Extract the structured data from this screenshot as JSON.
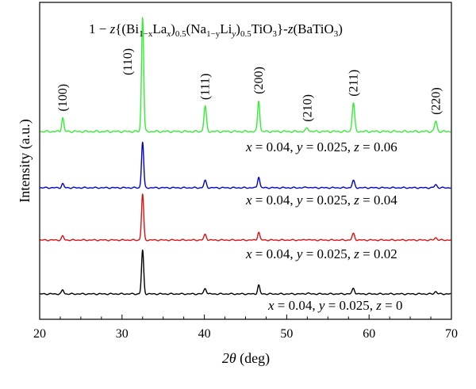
{
  "chart_data": {
    "type": "line",
    "xlabel_symbol": "2θ",
    "xlabel_unit": "(deg)",
    "ylabel": "Intensity (a.u.)",
    "xlim": [
      20,
      70
    ],
    "x_ticks": [
      "20",
      "30",
      "40",
      "50",
      "60",
      "70"
    ],
    "y_ticks_shown": false,
    "grid": false,
    "formula": {
      "prefix": "1 − ",
      "var_z": "z",
      "open": "{(Bi",
      "sub_1mx": "1−x",
      "la": "La",
      "sub_x": "x",
      "close1": ")",
      "sub_05a": "0.5",
      "na": "(Na",
      "sub_1my": "1−y",
      "li": "Li",
      "sub_y": "y",
      "close2": ")",
      "sub_05b": "0.5",
      "tio": "TiO",
      "sub_3a": "3",
      "close3": "}-",
      "var_z2": "z",
      "bt": "(BaTiO",
      "sub_3b": "3",
      "end": ")"
    },
    "peaks": [
      {
        "label": "(100)",
        "x": 22.8
      },
      {
        "label": "(110)",
        "x": 32.5
      },
      {
        "label": "(111)",
        "x": 40.1
      },
      {
        "label": "(200)",
        "x": 46.6
      },
      {
        "label": "(210)",
        "x": 52.5
      },
      {
        "label": "(211)",
        "x": 58.1
      },
      {
        "label": "(220)",
        "x": 68.1
      }
    ],
    "series": [
      {
        "label": {
          "x": "x",
          "xv": " = 0.04, ",
          "y": "y",
          "yv": " = 0.025, ",
          "z": "z",
          "zv": " = 0.06"
        },
        "color": "#33ee33",
        "intensities": [
          12,
          100,
          22,
          27,
          3,
          25,
          9
        ]
      },
      {
        "label": {
          "x": "x",
          "xv": " = 0.04, ",
          "y": "y",
          "yv": " = 0.025, ",
          "z": "z",
          "zv": " = 0.04"
        },
        "color": "#0000cc",
        "intensities": [
          5,
          58,
          9,
          14,
          1,
          9,
          4
        ]
      },
      {
        "label": {
          "x": "x",
          "xv": " = 0.04, ",
          "y": "y",
          "yv": " = 0.025, ",
          "z": "z",
          "zv": " = 0.02"
        },
        "color": "#dd1111",
        "intensities": [
          5,
          58,
          7,
          10,
          1,
          8,
          3
        ]
      },
      {
        "label": {
          "x": "x",
          "xv": " = 0.04, ",
          "y": "y",
          "yv": " = 0.025, ",
          "z": "z",
          "zv": " = 0"
        },
        "color": "#000000",
        "intensities": [
          5,
          55,
          7,
          11,
          1,
          7,
          3
        ]
      }
    ]
  }
}
